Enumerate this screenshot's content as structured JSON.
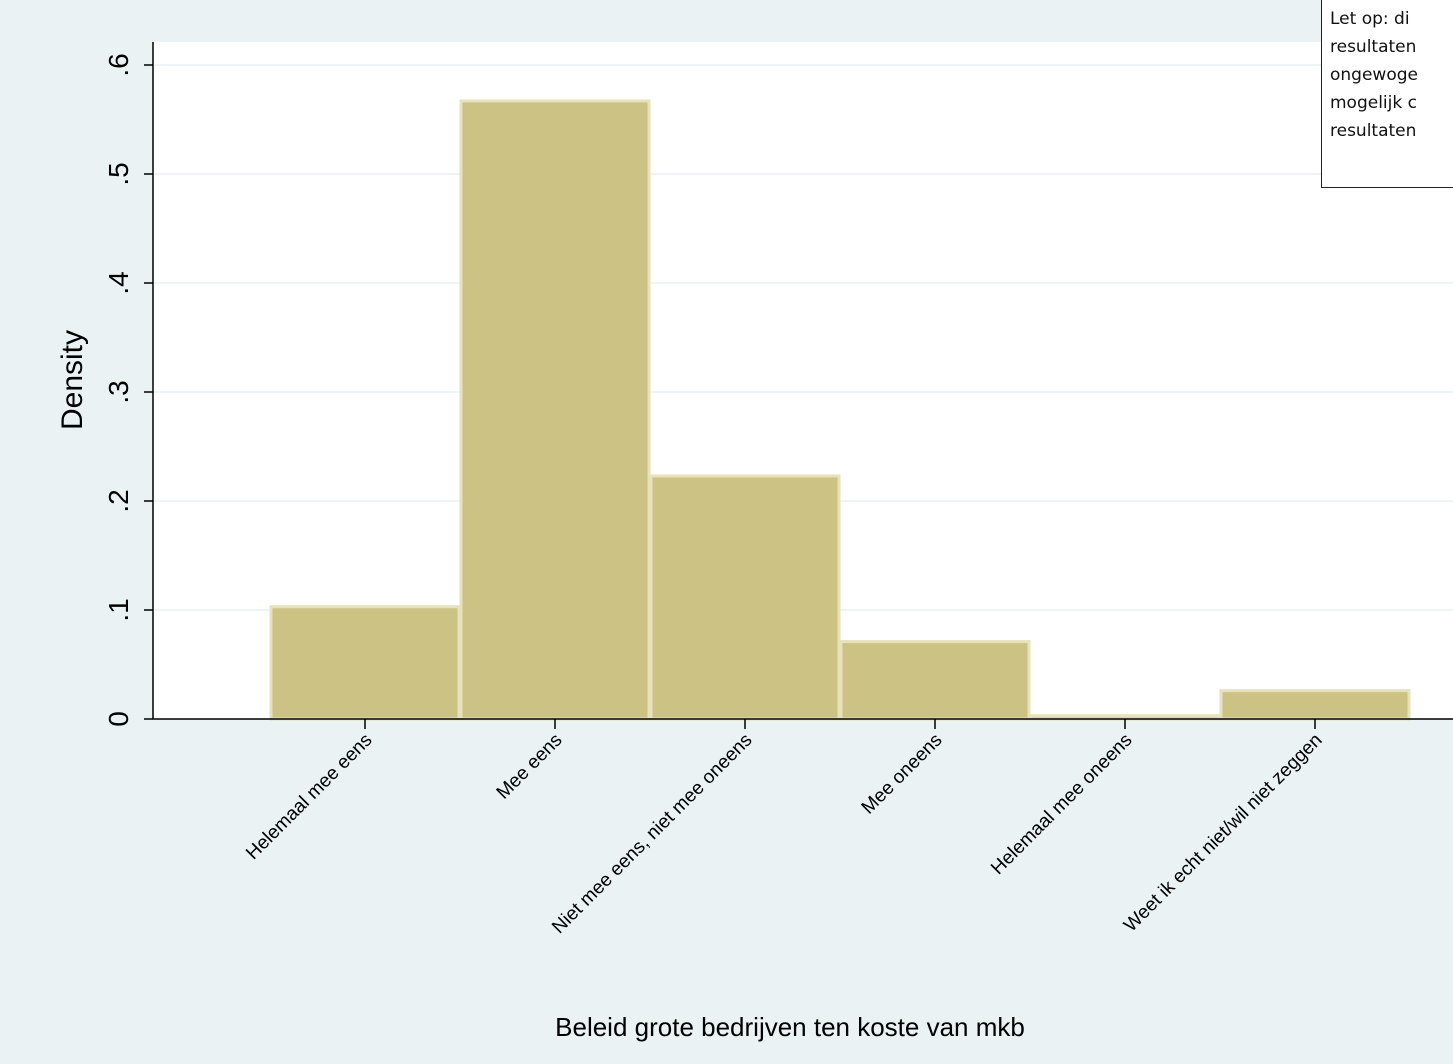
{
  "colors": {
    "outer_background": "#eaf2f3",
    "plot_background": "#ffffff",
    "bar_fill": "#cbc283",
    "bar_edge": "#e7e1bd",
    "gridline": "#eaf2f3",
    "axis": "#000000"
  },
  "note": {
    "lines": [
      "Let op: di",
      "resultaten",
      "ongewoge",
      "mogelijk c",
      "resultaten"
    ]
  },
  "chart_data": {
    "type": "bar",
    "title": "",
    "xlabel": "Beleid grote bedrijven ten koste van mkb",
    "ylabel": "Density",
    "categories": [
      "Helemaal mee eens",
      "Mee eens",
      "Niet mee eens, niet mee oneens",
      "Mee oneens",
      "Helemaal mee oneens",
      "Weet ik echt niet/wil niet zeggen"
    ],
    "values": [
      0.103,
      0.567,
      0.223,
      0.071,
      0.003,
      0.026
    ],
    "ylim": [
      0,
      0.62
    ],
    "yticks": [
      0,
      0.1,
      0.2,
      0.3,
      0.4,
      0.5,
      0.6
    ],
    "ytick_labels": [
      "0",
      ".1",
      ".2",
      ".3",
      ".4",
      ".5",
      ".6"
    ],
    "grid": true,
    "legend": "none"
  }
}
